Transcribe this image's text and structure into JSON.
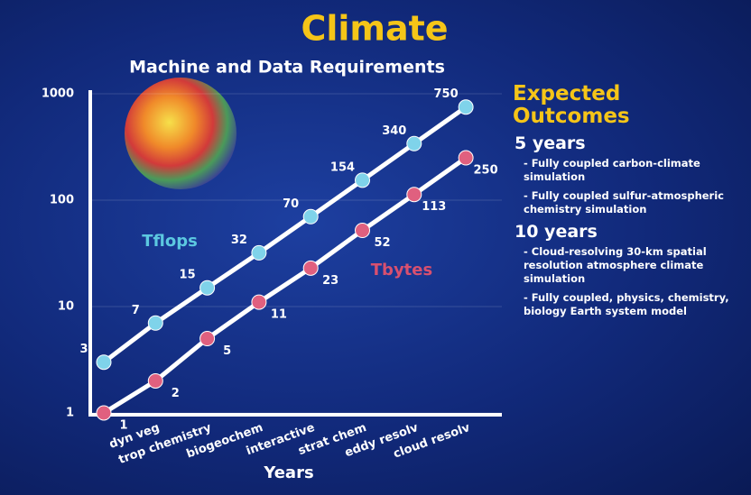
{
  "chart_data": {
    "type": "line",
    "title": "Climate",
    "subtitle": "Machine and Data Requirements",
    "x_label": "Years",
    "categories": [
      null,
      "dyn veg",
      "trop chemistry",
      "biogeochem",
      "interactive",
      "strat chem",
      "eddy resolv",
      "cloud resolv"
    ],
    "series": [
      {
        "name": "Tflops",
        "color": "#7fd3ea",
        "values": [
          3,
          7,
          15,
          32,
          70,
          154,
          340,
          750
        ]
      },
      {
        "name": "Tbytes",
        "color": "#e0607f",
        "values": [
          1,
          2,
          5,
          11,
          23,
          52,
          113,
          250
        ]
      }
    ],
    "ylim": [
      1,
      1000
    ],
    "yticks": [
      1,
      10,
      100,
      1000
    ],
    "log_y": true,
    "grid": true
  },
  "outcomes": {
    "title_line1": "Expected",
    "title_line2": "Outcomes",
    "groups": [
      {
        "heading": "5 years",
        "items": [
          "- Fully coupled carbon-climate simulation",
          "- Fully coupled sulfur-atmospheric chemistry simulation"
        ]
      },
      {
        "heading": "10 years",
        "items": [
          "- Cloud-resolving 30-km spatial resolution atmosphere climate simulation",
          "- Fully coupled, physics, chemistry, biology Earth system model"
        ]
      }
    ]
  }
}
